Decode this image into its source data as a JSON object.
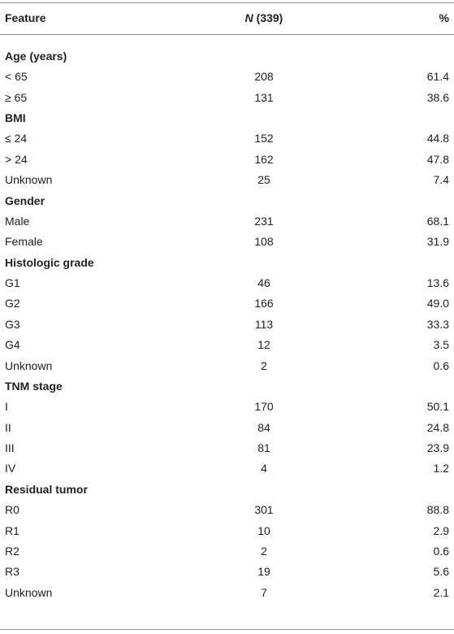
{
  "header": {
    "feature": "Feature",
    "n_italic": "N",
    "n_rest": "(339)",
    "percent": "%"
  },
  "sections": [
    {
      "title": "Age (years)",
      "rows": [
        [
          "< 65",
          "208",
          "61.4"
        ],
        [
          "≥ 65",
          "131",
          "38.6"
        ]
      ]
    },
    {
      "title": "BMI",
      "rows": [
        [
          "≤ 24",
          "152",
          "44.8"
        ],
        [
          "> 24",
          "162",
          "47.8"
        ],
        [
          "Unknown",
          "25",
          "7.4"
        ]
      ]
    },
    {
      "title": "Gender",
      "rows": [
        [
          "Male",
          "231",
          "68.1"
        ],
        [
          "Female",
          "108",
          "31.9"
        ]
      ]
    },
    {
      "title": "Histologic grade",
      "rows": [
        [
          "G1",
          "46",
          "13.6"
        ],
        [
          "G2",
          "166",
          "49.0"
        ],
        [
          "G3",
          "113",
          "33.3"
        ],
        [
          "G4",
          "12",
          "3.5"
        ],
        [
          "Unknown",
          "2",
          "0.6"
        ]
      ]
    },
    {
      "title": "TNM stage",
      "rows": [
        [
          "I",
          "170",
          "50.1"
        ],
        [
          "II",
          "84",
          "24.8"
        ],
        [
          "III",
          "81",
          "23.9"
        ],
        [
          "IV",
          "4",
          "1.2"
        ]
      ]
    },
    {
      "title": "Residual tumor",
      "rows": [
        [
          "R0",
          "301",
          "88.8"
        ],
        [
          "R1",
          "10",
          "2.9"
        ],
        [
          "R2",
          "2",
          "0.6"
        ],
        [
          "R3",
          "19",
          "5.6"
        ],
        [
          "Unknown",
          "7",
          "2.1"
        ]
      ]
    }
  ]
}
